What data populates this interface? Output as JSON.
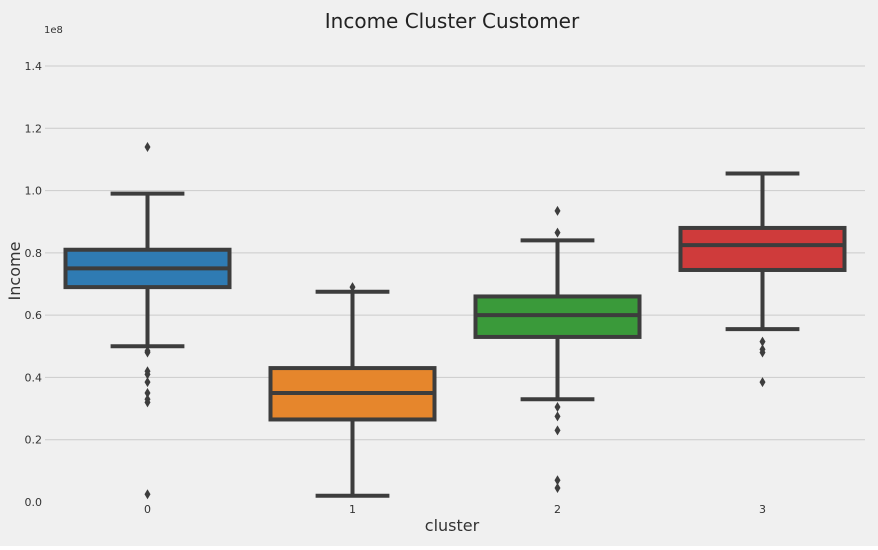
{
  "chart_data": {
    "type": "box",
    "title": "Income Cluster Customer",
    "xlabel": "cluster",
    "ylabel": "Income",
    "y_offset_label": "1e8",
    "categories": [
      "0",
      "1",
      "2",
      "3"
    ],
    "y_ticks": [
      "0.0",
      "0.2",
      "0.4",
      "0.6",
      "0.8",
      "1.0",
      "1.2",
      "1.4"
    ],
    "y_tick_values": [
      0.0,
      0.2,
      0.4,
      0.6,
      0.8,
      1.0,
      1.2,
      1.4
    ],
    "ylim": [
      -0.02,
      1.5
    ],
    "grid": true,
    "boxes": [
      {
        "category": "0",
        "color": "#2f7bb3",
        "whisker_low": 0.5,
        "q1": 0.69,
        "median": 0.75,
        "q3": 0.81,
        "whisker_high": 0.99,
        "outliers": [
          1.14,
          0.485,
          0.48,
          0.42,
          0.41,
          0.385,
          0.35,
          0.33,
          0.32,
          0.025
        ]
      },
      {
        "category": "1",
        "color": "#e6862c",
        "whisker_low": 0.02,
        "q1": 0.265,
        "median": 0.35,
        "q3": 0.43,
        "whisker_high": 0.675,
        "outliers": [
          0.69
        ]
      },
      {
        "category": "2",
        "color": "#3a9a3a",
        "whisker_low": 0.33,
        "q1": 0.53,
        "median": 0.6,
        "q3": 0.66,
        "whisker_high": 0.84,
        "outliers": [
          0.935,
          0.865,
          0.305,
          0.275,
          0.23,
          0.07,
          0.045
        ]
      },
      {
        "category": "3",
        "color": "#cf3b3b",
        "whisker_low": 0.555,
        "q1": 0.745,
        "median": 0.825,
        "q3": 0.88,
        "whisker_high": 1.055,
        "outliers": [
          0.515,
          0.49,
          0.48,
          0.385
        ]
      }
    ]
  }
}
